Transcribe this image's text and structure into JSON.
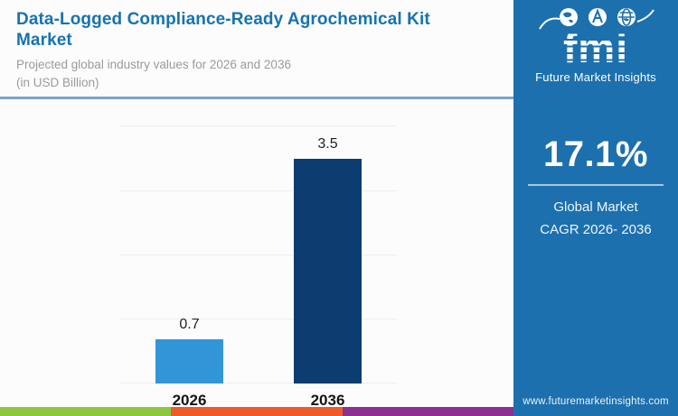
{
  "header": {
    "title": "Data-Logged Compliance-Ready Agrochemical Kit Market",
    "subtitle_line1": "Projected global industry values for 2026 and 2036",
    "subtitle_line2": "(in USD Billion)"
  },
  "chart_data": {
    "type": "bar",
    "categories": [
      "2026",
      "2036"
    ],
    "values": [
      0.7,
      3.5
    ],
    "value_labels": [
      "0.7",
      "3.5"
    ],
    "title": "Data-Logged Compliance-Ready Agrochemical Kit Market",
    "xlabel": "",
    "ylabel": "",
    "ylim": [
      0,
      4
    ],
    "gridline_step": 1,
    "grid": "horizontal",
    "legend": "none",
    "bar_colors": [
      "#3295d5",
      "#0d3d70"
    ]
  },
  "sidebar": {
    "logo_text": "fmi",
    "logo_tagline": "Future Market Insights",
    "stat_value": "17.1%",
    "stat_label_line1": "Global Market",
    "stat_label_line2": "CAGR 2026- 2036",
    "website": "www.futuremarketinsights.com"
  },
  "colors": {
    "title_blue": "#1673b1",
    "sidebar_bg": "#1c70ae",
    "bar_2026": "#3295d5",
    "bar_2036": "#0d3d70",
    "stripe_green": "#8dc63f",
    "stripe_orange": "#ee5b28",
    "stripe_purple": "#8a3191",
    "gridline": "#f3eaea"
  }
}
